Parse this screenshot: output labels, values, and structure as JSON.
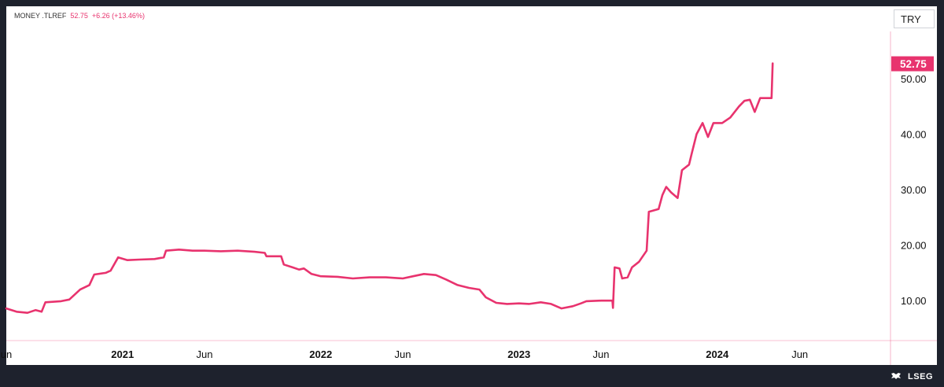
{
  "header": {
    "instrument": "MONEY .TLREF",
    "last": "52.75",
    "change": "+6.26 (+13.46%)"
  },
  "currency": "TRY",
  "brand": "LSEG",
  "icons": {
    "brand_mark": "lseg-logo-icon"
  },
  "colors": {
    "series": "#e8336e",
    "label_bg": "#e8336e",
    "background": "#ffffff",
    "frame": "#1e222d"
  },
  "chart_data": {
    "type": "line",
    "title": "",
    "xlabel": "",
    "ylabel": "",
    "y_ticks": [
      "10.00",
      "20.00",
      "30.00",
      "40.00",
      "50.00"
    ],
    "y_tick_values": [
      10,
      20,
      30,
      40,
      50
    ],
    "x_ticks": [
      "un",
      "2021",
      "Jun",
      "2022",
      "Jun",
      "2023",
      "Jun",
      "2024",
      "Jun"
    ],
    "x_tick_dates": [
      "2020-06-01",
      "2021-01-01",
      "2021-06-01",
      "2022-01-01",
      "2022-06-01",
      "2023-01-01",
      "2023-06-01",
      "2024-01-01",
      "2024-06-01"
    ],
    "last_value_label": "52.75",
    "ylim": [
      2.8,
      58.5
    ],
    "xlim": [
      "2020-06-01",
      "2024-11-15"
    ],
    "grid": false,
    "series": [
      {
        "points": [
          [
            "2020-06-01",
            8.6
          ],
          [
            "2020-06-20",
            8.0
          ],
          [
            "2020-07-10",
            7.8
          ],
          [
            "2020-07-25",
            8.3
          ],
          [
            "2020-08-05",
            8.0
          ],
          [
            "2020-08-12",
            9.7
          ],
          [
            "2020-09-10",
            9.9
          ],
          [
            "2020-09-25",
            10.2
          ],
          [
            "2020-10-15",
            12.0
          ],
          [
            "2020-11-01",
            12.8
          ],
          [
            "2020-11-10",
            14.7
          ],
          [
            "2020-12-01",
            15.0
          ],
          [
            "2020-12-10",
            15.4
          ],
          [
            "2020-12-24",
            17.8
          ],
          [
            "2021-01-10",
            17.3
          ],
          [
            "2021-02-01",
            17.4
          ],
          [
            "2021-03-01",
            17.5
          ],
          [
            "2021-03-18",
            17.8
          ],
          [
            "2021-03-22",
            19.0
          ],
          [
            "2021-04-15",
            19.2
          ],
          [
            "2021-05-10",
            19.0
          ],
          [
            "2021-06-01",
            19.0
          ],
          [
            "2021-07-01",
            18.9
          ],
          [
            "2021-08-01",
            19.0
          ],
          [
            "2021-09-01",
            18.8
          ],
          [
            "2021-09-20",
            18.6
          ],
          [
            "2021-09-23",
            18.0
          ],
          [
            "2021-10-20",
            18.0
          ],
          [
            "2021-10-25",
            16.5
          ],
          [
            "2021-11-10",
            16.0
          ],
          [
            "2021-11-22",
            15.6
          ],
          [
            "2021-12-01",
            15.8
          ],
          [
            "2021-12-15",
            14.8
          ],
          [
            "2022-01-01",
            14.4
          ],
          [
            "2022-02-01",
            14.3
          ],
          [
            "2022-03-01",
            14.0
          ],
          [
            "2022-04-01",
            14.2
          ],
          [
            "2022-05-01",
            14.2
          ],
          [
            "2022-06-01",
            14.0
          ],
          [
            "2022-06-20",
            14.4
          ],
          [
            "2022-07-10",
            14.8
          ],
          [
            "2022-08-01",
            14.6
          ],
          [
            "2022-08-20",
            13.8
          ],
          [
            "2022-09-10",
            12.8
          ],
          [
            "2022-10-01",
            12.3
          ],
          [
            "2022-10-20",
            12.0
          ],
          [
            "2022-11-01",
            10.6
          ],
          [
            "2022-11-20",
            9.6
          ],
          [
            "2022-12-10",
            9.4
          ],
          [
            "2023-01-01",
            9.5
          ],
          [
            "2023-01-20",
            9.4
          ],
          [
            "2023-02-10",
            9.7
          ],
          [
            "2023-03-01",
            9.4
          ],
          [
            "2023-03-20",
            8.6
          ],
          [
            "2023-04-10",
            9.0
          ],
          [
            "2023-04-25",
            9.5
          ],
          [
            "2023-05-05",
            9.9
          ],
          [
            "2023-06-01",
            10.0
          ],
          [
            "2023-06-22",
            10.0
          ],
          [
            "2023-06-23",
            8.7
          ],
          [
            "2023-06-26",
            16.0
          ],
          [
            "2023-07-05",
            15.8
          ],
          [
            "2023-07-10",
            14.0
          ],
          [
            "2023-07-20",
            14.2
          ],
          [
            "2023-07-28",
            16.0
          ],
          [
            "2023-08-10",
            17.0
          ],
          [
            "2023-08-24",
            19.0
          ],
          [
            "2023-08-28",
            26.0
          ],
          [
            "2023-09-15",
            26.5
          ],
          [
            "2023-09-22",
            29.0
          ],
          [
            "2023-09-29",
            30.5
          ],
          [
            "2023-10-08",
            29.5
          ],
          [
            "2023-10-20",
            28.5
          ],
          [
            "2023-10-28",
            33.5
          ],
          [
            "2023-11-10",
            34.5
          ],
          [
            "2023-11-15",
            36.5
          ],
          [
            "2023-11-24",
            40.0
          ],
          [
            "2023-12-05",
            42.0
          ],
          [
            "2023-12-15",
            39.5
          ],
          [
            "2023-12-25",
            42.0
          ],
          [
            "2024-01-10",
            42.0
          ],
          [
            "2024-01-25",
            43.0
          ],
          [
            "2024-02-10",
            45.0
          ],
          [
            "2024-02-20",
            46.0
          ],
          [
            "2024-03-01",
            46.2
          ],
          [
            "2024-03-10",
            44.0
          ],
          [
            "2024-03-20",
            46.5
          ],
          [
            "2024-04-10",
            46.5
          ],
          [
            "2024-04-12",
            52.75
          ]
        ]
      }
    ]
  }
}
